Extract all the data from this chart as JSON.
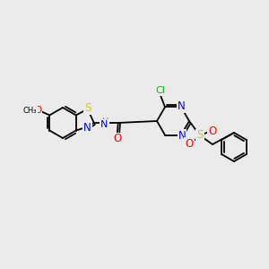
{
  "bg_color": "#ebebeb",
  "bond_color": "#000000",
  "atom_colors": {
    "N": "#0000ff",
    "O": "#ff0000",
    "S": "#cccc00",
    "Cl": "#00bb00",
    "C": "#000000",
    "H": "#5599aa"
  },
  "font_size": 7.5,
  "figsize": [
    3.0,
    3.0
  ],
  "dpi": 100
}
